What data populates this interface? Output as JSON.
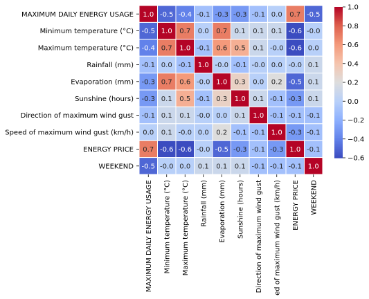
{
  "chart_data": {
    "type": "heatmap",
    "title": "",
    "xlabel": "",
    "ylabel": "",
    "labels": [
      "MAXIMUM DAILY ENERGY USAGE",
      "Minimum temperature (°C)",
      "Maximum temperature (°C)",
      "Rainfall (mm)",
      "Evaporation (mm)",
      "Sunshine (hours)",
      "Direction of maximum wind gust ",
      "Speed of maximum wind gust (km/h)",
      "ENERGY PRICE",
      "WEEKEND"
    ],
    "values": [
      [
        1.0,
        -0.5,
        -0.4,
        -0.1,
        -0.3,
        -0.3,
        -0.1,
        0.0,
        0.7,
        -0.5
      ],
      [
        -0.5,
        1.0,
        0.7,
        0.0,
        0.7,
        0.1,
        0.1,
        0.1,
        -0.6,
        -0.0
      ],
      [
        -0.4,
        0.7,
        1.0,
        -0.1,
        0.6,
        0.5,
        0.1,
        -0.0,
        -0.6,
        0.0
      ],
      [
        -0.1,
        0.0,
        -0.1,
        1.0,
        -0.0,
        -0.1,
        -0.0,
        0.0,
        -0.0,
        0.1
      ],
      [
        -0.3,
        0.7,
        0.6,
        -0.0,
        1.0,
        0.3,
        0.0,
        0.2,
        -0.5,
        0.1
      ],
      [
        -0.3,
        0.1,
        0.5,
        -0.1,
        0.3,
        1.0,
        0.1,
        -0.1,
        -0.3,
        0.1
      ],
      [
        -0.1,
        0.1,
        0.1,
        -0.0,
        0.0,
        0.1,
        1.0,
        -0.1,
        -0.1,
        -0.1
      ],
      [
        0.0,
        0.1,
        -0.0,
        0.0,
        0.2,
        -0.1,
        -0.1,
        1.0,
        -0.3,
        -0.1
      ],
      [
        0.7,
        -0.6,
        -0.6,
        -0.0,
        -0.5,
        -0.3,
        -0.1,
        -0.3,
        1.0,
        -0.1
      ],
      [
        -0.5,
        -0.0,
        0.0,
        0.1,
        0.1,
        0.1,
        -0.1,
        -0.1,
        -0.1,
        1.0
      ]
    ],
    "annotations": [
      [
        "1.0",
        "-0.5",
        "-0.4",
        "-0.1",
        "-0.3",
        "-0.3",
        "-0.1",
        "0.0",
        "0.7",
        "-0.5"
      ],
      [
        "-0.5",
        "1.0",
        "0.7",
        "0.0",
        "0.7",
        "0.1",
        "0.1",
        "0.1",
        "-0.6",
        "-0.0"
      ],
      [
        "-0.4",
        "0.7",
        "1.0",
        "-0.1",
        "0.6",
        "0.5",
        "0.1",
        "-0.0",
        "-0.6",
        "0.0"
      ],
      [
        "-0.1",
        "0.0",
        "-0.1",
        "1.0",
        "-0.0",
        "-0.1",
        "-0.0",
        "0.0",
        "-0.0",
        "0.1"
      ],
      [
        "-0.3",
        "0.7",
        "0.6",
        "-0.0",
        "1.0",
        "0.3",
        "0.0",
        "0.2",
        "-0.5",
        "0.1"
      ],
      [
        "-0.3",
        "0.1",
        "0.5",
        "-0.1",
        "0.3",
        "1.0",
        "0.1",
        "-0.1",
        "-0.3",
        "0.1"
      ],
      [
        "-0.1",
        "0.1",
        "0.1",
        "-0.0",
        "0.0",
        "0.1",
        "1.0",
        "-0.1",
        "-0.1",
        "-0.1"
      ],
      [
        "0.0",
        "0.1",
        "-0.0",
        "0.0",
        "0.2",
        "-0.1",
        "-0.1",
        "1.0",
        "-0.3",
        "-0.1"
      ],
      [
        "0.7",
        "-0.6",
        "-0.6",
        "-0.0",
        "-0.5",
        "-0.3",
        "-0.1",
        "-0.3",
        "1.0",
        "-0.1"
      ],
      [
        "-0.5",
        "-0.0",
        "0.0",
        "0.1",
        "0.1",
        "0.1",
        "-0.1",
        "-0.1",
        "-0.1",
        "1.0"
      ]
    ],
    "colormap": "coolwarm",
    "color_range": [
      -0.6,
      1.0
    ],
    "colorbar_ticks": [
      1.0,
      0.8,
      0.6,
      0.4,
      0.2,
      0.0,
      -0.2,
      -0.4,
      -0.6
    ],
    "colorbar_tick_labels": [
      "1.0",
      "0.8",
      "0.6",
      "0.4",
      "0.2",
      "0.0",
      "−0.2",
      "−0.4",
      "−0.6"
    ],
    "grid": false
  }
}
